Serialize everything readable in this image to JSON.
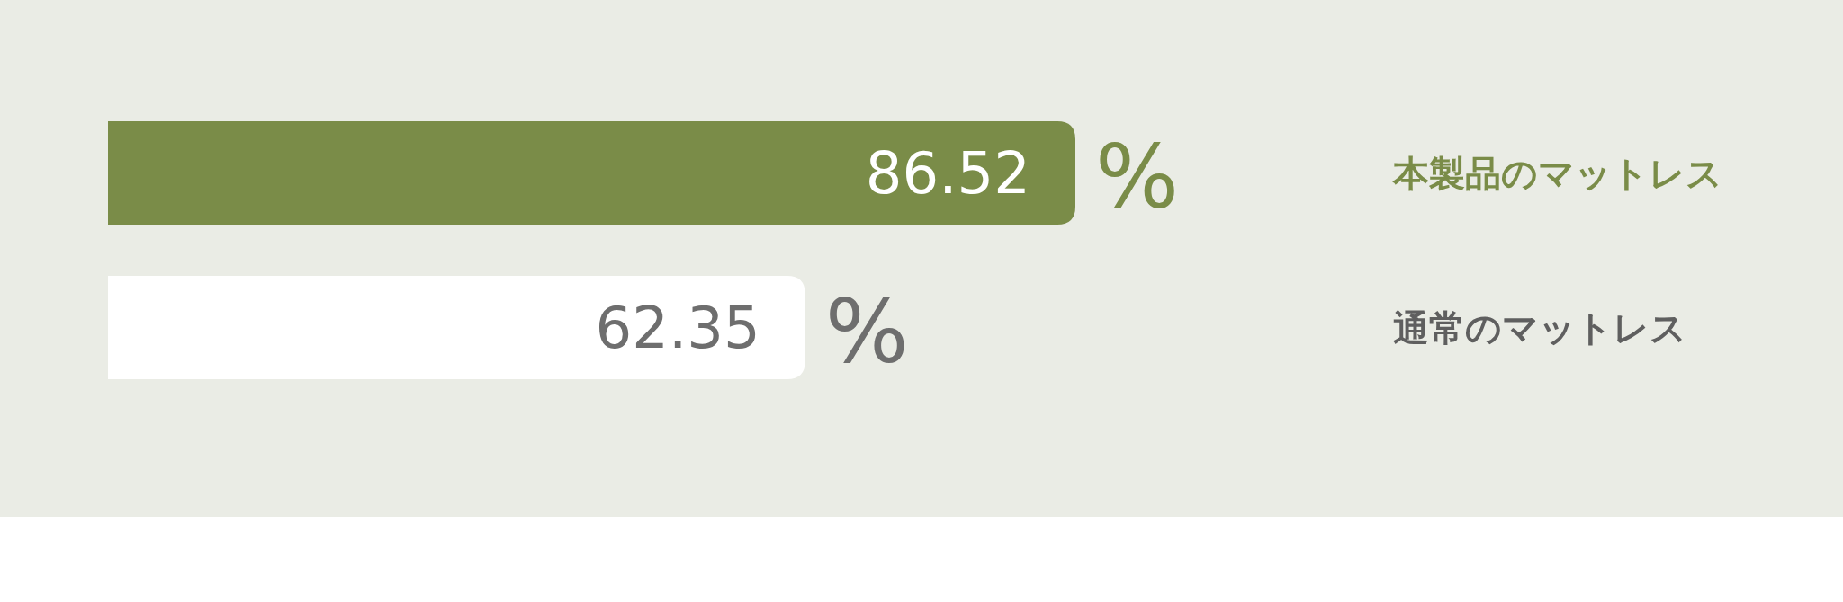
{
  "chart_data": {
    "type": "bar",
    "orientation": "horizontal",
    "categories": [
      "本製品のマットレス",
      "通常のマットレス"
    ],
    "values": [
      86.52,
      62.35
    ],
    "colors": [
      "#7a8c48",
      "#ffffff"
    ],
    "value_labels": [
      "86.52 %",
      "62.35 %"
    ]
  }
}
